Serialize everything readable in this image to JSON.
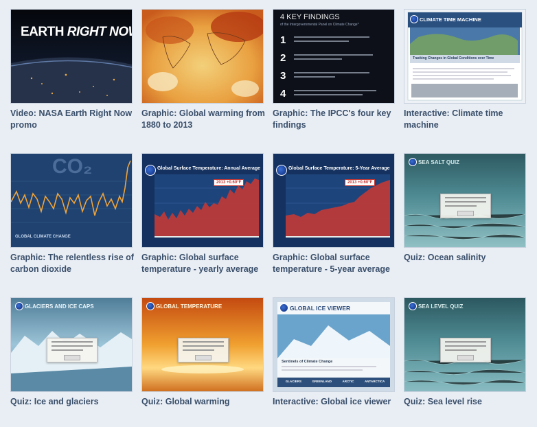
{
  "cards": [
    {
      "caption": "Video: NASA Earth Right Now promo",
      "thumb_text": [
        "EARTH",
        "RIGHT NOW"
      ]
    },
    {
      "caption": "Graphic: Global warming from 1880 to 2013"
    },
    {
      "caption": "Graphic: The IPCC's four key findings",
      "thumb_title": "4 KEY FINDINGS",
      "thumb_subtitle": "of the Intergovernmental Panel on Climate Change*",
      "thumb_numbers": [
        "1",
        "2",
        "3",
        "4"
      ]
    },
    {
      "caption": "Interactive: Climate time machine",
      "thumb_title": "CLIMATE TIME MACHINE",
      "thumb_subtitle": "Tracking Changes in Global Conditions over Time"
    },
    {
      "caption": "Graphic: The relentless rise of carbon dioxide",
      "thumb_title": "CO₂",
      "thumb_footer": "GLOBAL CLIMATE CHANGE"
    },
    {
      "caption": "Graphic: Global surface temperature - yearly average",
      "thumb_title": "Global Surface Temperature: Annual Average",
      "thumb_badge": "2013 +0.60°F"
    },
    {
      "caption": "Graphic: Global surface temperature - 5-year average",
      "thumb_title": "Global Surface Temperature: 5-Year Average",
      "thumb_badge": "2013 +0.60°F"
    },
    {
      "caption": "Quiz: Ocean salinity",
      "thumb_title": "SEA SALT QUIZ"
    },
    {
      "caption": "Quiz: Ice and glaciers",
      "thumb_title": "GLACIERS AND ICE CAPS"
    },
    {
      "caption": "Quiz: Global warming",
      "thumb_title": "GLOBAL TEMPERATURE"
    },
    {
      "caption": "Interactive: Global ice viewer",
      "thumb_title": "GLOBAL ICE VIEWER",
      "thumb_subtitle": "Sentinels of Climate Change",
      "thumb_tabs": [
        "GLACIERS",
        "GREENLAND",
        "ARCTIC",
        "ANTARCTICA"
      ]
    },
    {
      "caption": "Quiz: Sea level rise",
      "thumb_title": "SEA LEVEL QUIZ"
    }
  ],
  "colors": {
    "caption": "#3a4f6a",
    "page_bg": "#e9eef5"
  }
}
